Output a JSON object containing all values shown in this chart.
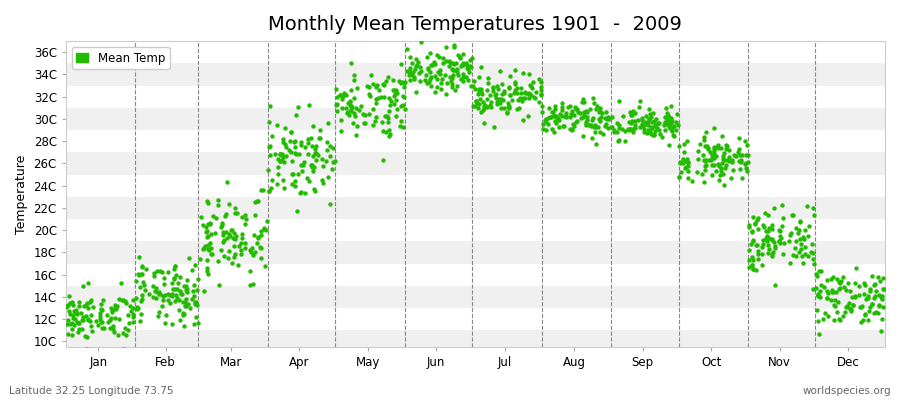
{
  "title": "Monthly Mean Temperatures 1901  -  2009",
  "ylabel": "Temperature",
  "subtitle_left": "Latitude 32.25 Longitude 73.75",
  "subtitle_right": "worldspecies.org",
  "legend_label": "Mean Temp",
  "dot_color": "#22bb00",
  "background_color": "#ffffff",
  "plot_bg_color": "#ffffff",
  "band_color_a": "#f0f0f0",
  "band_color_b": "#ffffff",
  "ytick_labels": [
    "10C",
    "12C",
    "14C",
    "16C",
    "18C",
    "20C",
    "22C",
    "24C",
    "26C",
    "28C",
    "30C",
    "32C",
    "34C",
    "36C"
  ],
  "ytick_values": [
    10,
    12,
    14,
    16,
    18,
    20,
    22,
    24,
    26,
    28,
    30,
    32,
    34,
    36
  ],
  "ylim": [
    9.5,
    37.0
  ],
  "month_names": [
    "Jan",
    "Feb",
    "Mar",
    "Apr",
    "May",
    "Jun",
    "Jul",
    "Aug",
    "Sep",
    "Oct",
    "Nov",
    "Dec"
  ],
  "month_centers": [
    15.5,
    45.5,
    74.5,
    105.0,
    135.5,
    166.0,
    196.5,
    227.5,
    258.0,
    288.5,
    319.0,
    349.5
  ],
  "month_starts": [
    1,
    32,
    60,
    91,
    121,
    152,
    182,
    213,
    244,
    274,
    305,
    335,
    366
  ],
  "xlim": [
    1,
    366
  ],
  "seed": 42,
  "monthly_mean_temps": [
    12.2,
    14.2,
    19.5,
    26.5,
    31.5,
    34.5,
    32.2,
    30.0,
    29.5,
    26.5,
    19.0,
    14.0
  ],
  "monthly_std": [
    1.1,
    1.4,
    2.0,
    1.8,
    1.5,
    1.0,
    1.0,
    0.8,
    0.8,
    1.0,
    1.5,
    1.3
  ],
  "n_years": 109,
  "title_fontsize": 14,
  "axis_fontsize": 9,
  "tick_fontsize": 8.5,
  "legend_fontsize": 8.5,
  "marker_size": 10
}
